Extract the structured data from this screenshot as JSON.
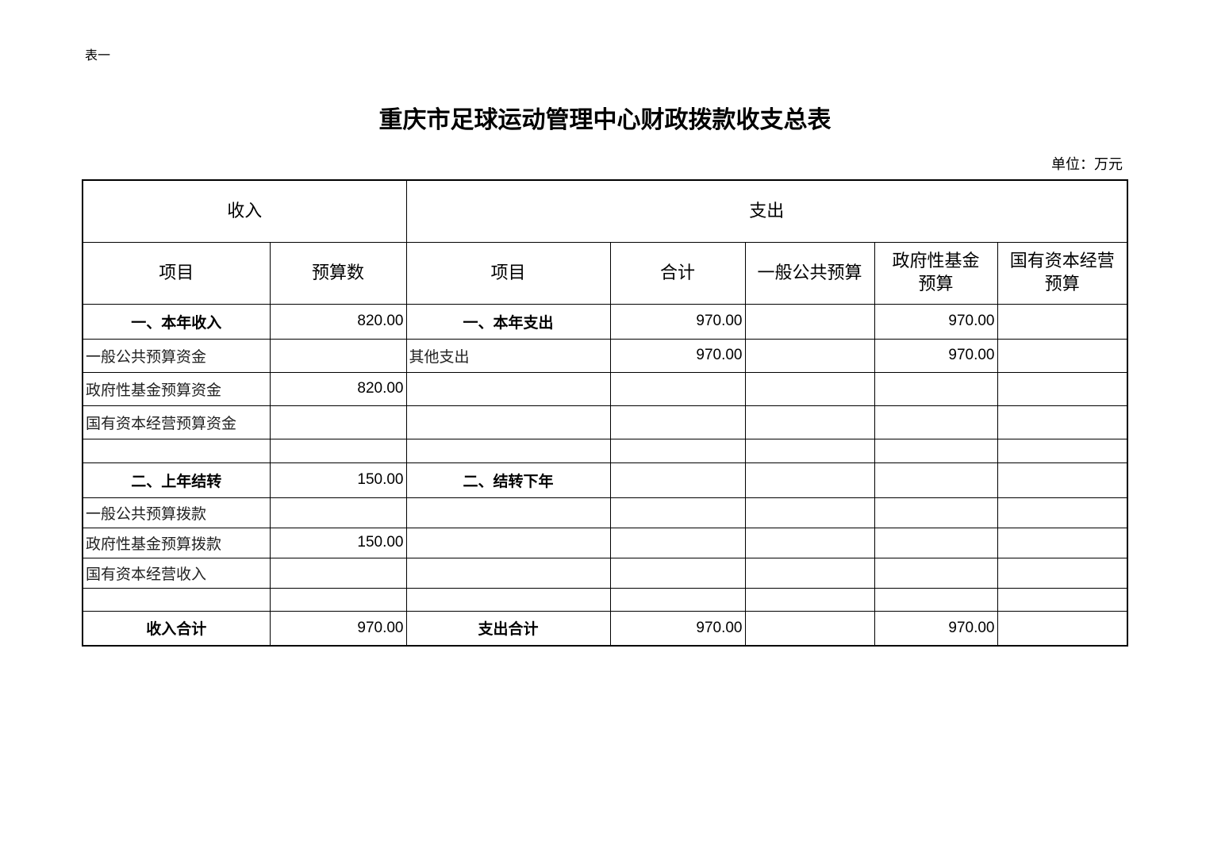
{
  "header": {
    "tag": "表一",
    "title": "重庆市足球运动管理中心财政拨款收支总表",
    "unit": "单位：万元"
  },
  "table": {
    "groups": [
      "收入",
      "支出"
    ],
    "columns": [
      [
        "项目"
      ],
      [
        "预算数"
      ],
      [
        "项目"
      ],
      [
        "合计"
      ],
      [
        "一般公共预算"
      ],
      [
        "政府性基金",
        "预算"
      ],
      [
        "国有资本经营",
        "预算"
      ]
    ],
    "rows": [
      [
        "一、本年收入",
        "820.00",
        "一、本年支出",
        "970.00",
        null,
        "970.00",
        null
      ],
      [
        "一般公共预算资金",
        null,
        "其他支出",
        "970.00",
        null,
        "970.00",
        null
      ],
      [
        "政府性基金预算资金",
        "820.00",
        null,
        null,
        null,
        null,
        null
      ],
      [
        "国有资本经营预算资金",
        null,
        null,
        null,
        null,
        null,
        null
      ],
      [
        null,
        null,
        null,
        null,
        null,
        null,
        null
      ],
      [
        "二、上年结转",
        "150.00",
        "二、结转下年",
        null,
        null,
        null,
        null
      ],
      [
        "一般公共预算拨款",
        null,
        null,
        null,
        null,
        null,
        null
      ],
      [
        "政府性基金预算拨款",
        "150.00",
        null,
        null,
        null,
        null,
        null
      ],
      [
        "国有资本经营收入",
        null,
        null,
        null,
        null,
        null,
        null
      ],
      [
        null,
        null,
        null,
        null,
        null,
        null,
        null
      ],
      [
        "收入合计",
        "970.00",
        "支出合计",
        "970.00",
        null,
        "970.00",
        null
      ]
    ]
  }
}
